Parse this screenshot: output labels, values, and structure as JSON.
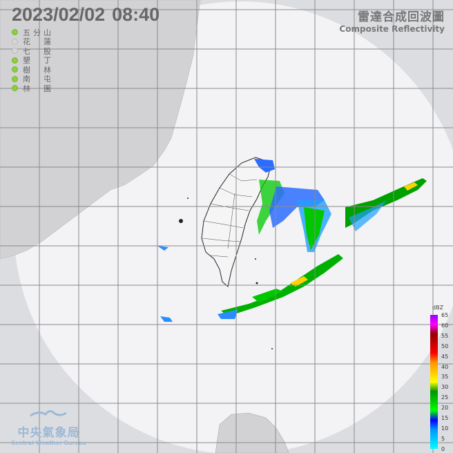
{
  "header": {
    "date": "2023/02/02",
    "time": "08:40"
  },
  "product": {
    "title_zh": "雷達合成回波圖",
    "title_en": "Composite Reflectivity"
  },
  "stations": [
    {
      "name": [
        "五",
        "分",
        "山"
      ],
      "status": "online",
      "color": "#8cd23c"
    },
    {
      "name": [
        "花",
        "",
        "蓮"
      ],
      "status": "offline",
      "color": "#d8d8d8"
    },
    {
      "name": [
        "七",
        "",
        "股"
      ],
      "status": "offline",
      "color": "#d8d8d8"
    },
    {
      "name": [
        "墾",
        "",
        "丁"
      ],
      "status": "online",
      "color": "#8cd23c"
    },
    {
      "name": [
        "樹",
        "",
        "林"
      ],
      "status": "online",
      "color": "#8cd23c"
    },
    {
      "name": [
        "南",
        "",
        "屯"
      ],
      "status": "online",
      "color": "#8cd23c"
    },
    {
      "name": [
        "林",
        "",
        "園"
      ],
      "status": "online",
      "color": "#8cd23c"
    }
  ],
  "legend": {
    "unit": "dBZ",
    "ticks": [
      "65",
      "60",
      "55",
      "50",
      "45",
      "40",
      "35",
      "30",
      "25",
      "20",
      "15",
      "10",
      "5",
      "0"
    ],
    "colors": [
      "#00ffff",
      "#00c8ff",
      "#0096ff",
      "#0000ff",
      "#00ff00",
      "#00c800",
      "#009600",
      "#ffff00",
      "#ffc800",
      "#ff9600",
      "#ff0000",
      "#c80000",
      "#960000",
      "#ff00ff",
      "#9600ff"
    ]
  },
  "logo": {
    "zh": "中央氣象局",
    "en": "Central Weather Bureau"
  },
  "colors": {
    "background": "#dcdde1",
    "radar_coverage": "#f3f3f5",
    "land": "#d2d2d4",
    "grid": "#8a8a8a"
  }
}
